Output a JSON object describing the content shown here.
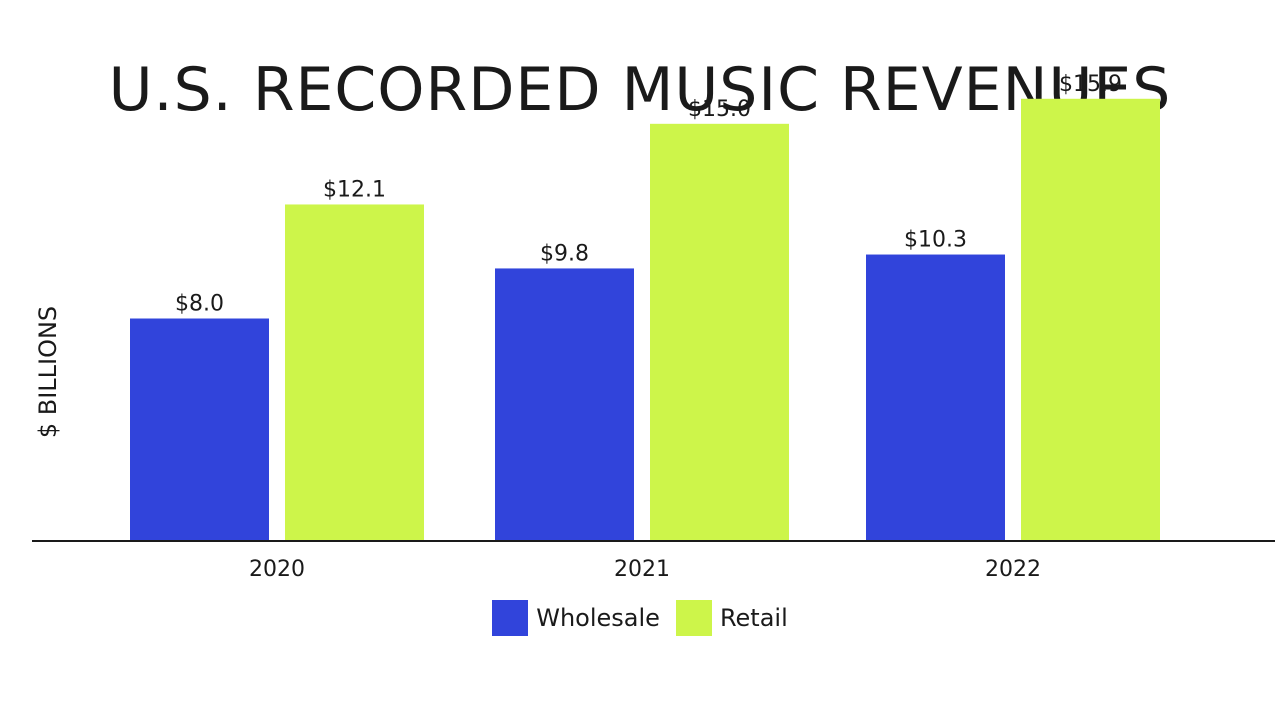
{
  "chart_data": {
    "type": "bar",
    "title": "U.S. RECORDED MUSIC REVENUES",
    "ylabel": "$ BILLIONS",
    "xlabel": "",
    "categories": [
      "2020",
      "2021",
      "2022"
    ],
    "series": [
      {
        "name": "Wholesale",
        "values": [
          8.0,
          9.8,
          10.3
        ],
        "labels": [
          "$8.0",
          "$9.8",
          "$10.3"
        ],
        "color": "#3144db"
      },
      {
        "name": "Retail",
        "values": [
          12.1,
          15.0,
          15.9
        ],
        "labels": [
          "$12.1",
          "$15.0",
          "$15.9"
        ],
        "color": "#cdf54a"
      }
    ],
    "ylim": [
      0,
      16
    ],
    "grid": false,
    "legend_position": "bottom-center"
  }
}
